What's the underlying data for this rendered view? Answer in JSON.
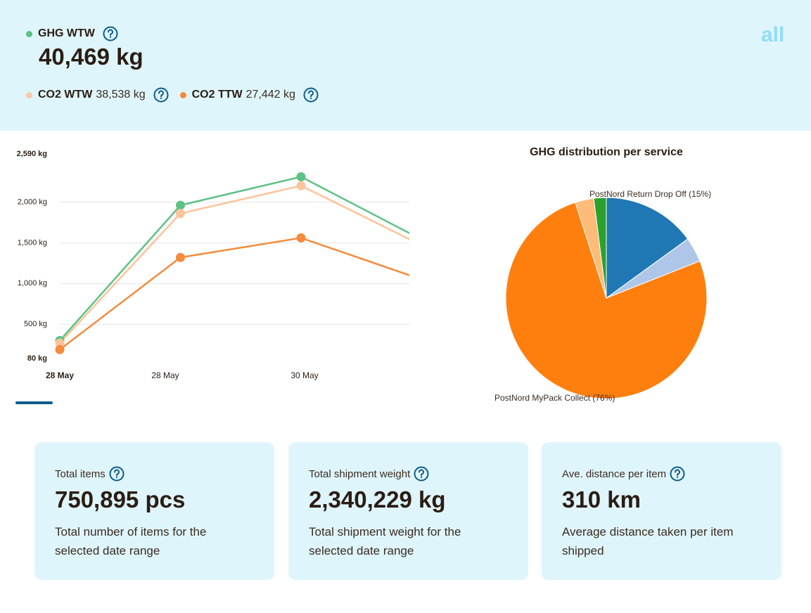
{
  "header": {
    "logo": "all",
    "main_metric": {
      "label": "GHG WTW",
      "value": "40,469 kg",
      "color": "#5cc184"
    },
    "sub_metrics": [
      {
        "label": "CO2 WTW",
        "value": "38,538 kg",
        "color": "#fdc9a6"
      },
      {
        "label": "CO2 TTW",
        "value": "27,442 kg",
        "color": "#f58b3d"
      }
    ]
  },
  "chart_data": [
    {
      "type": "line",
      "categories": [
        "28 May",
        "28 May",
        "30 May",
        null
      ],
      "series": [
        {
          "name": "GHG WTW",
          "color": "#5cc184",
          "values": [
            300,
            1960,
            2310,
            1540
          ]
        },
        {
          "name": "CO2 WTW",
          "color": "#fdc49a",
          "values": [
            270,
            1860,
            2200,
            1470
          ]
        },
        {
          "name": "CO2 TTW",
          "color": "#f58b3d",
          "values": [
            190,
            1320,
            1560,
            1050
          ]
        }
      ],
      "ylim": [
        80,
        2590
      ],
      "yticks": [
        {
          "value": 80,
          "label": "80 kg"
        },
        {
          "value": 500,
          "label": "500 kg"
        },
        {
          "value": 1000,
          "label": "1,000 kg"
        },
        {
          "value": 1500,
          "label": "1,500 kg"
        },
        {
          "value": 2000,
          "label": "2,000 kg"
        },
        {
          "value": 2590,
          "label": "2,590 kg"
        }
      ],
      "grid": true
    },
    {
      "type": "pie",
      "title": "GHG distribution per service",
      "values": [
        15,
        4,
        76,
        3,
        2
      ],
      "value_labels": [
        "PostNord Return Drop Off (15%)",
        null,
        "PostNord MyPack Collect (76%)",
        null,
        null
      ],
      "colors": [
        "#1f77b4",
        "#aec7e8",
        "#ff7f0e",
        "#ffbb78",
        "#2ca02c"
      ]
    }
  ],
  "cards": [
    {
      "title": "Total items",
      "value": "750,895 pcs",
      "description": "Total number of items for the selected date range"
    },
    {
      "title": "Total shipment weight",
      "value": "2,340,229 kg",
      "description": "Total shipment weight for the selected date range"
    },
    {
      "title": "Ave. distance per item",
      "value": "310 km",
      "description": "Average distance taken per item shipped"
    }
  ]
}
